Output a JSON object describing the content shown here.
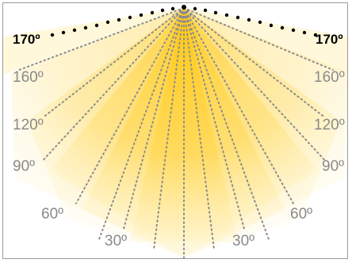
{
  "diagram": {
    "colors": {
      "beam_core": "#ffc400",
      "beam_edge": "#fff2b8",
      "ray_line": "#8c8c8c",
      "dot": "#000000",
      "frame_border": "#9a9a9a"
    },
    "labels": {
      "left_170": "170º",
      "right_170": "170º",
      "left_160": "160º",
      "right_160": "160º",
      "left_120": "120º",
      "right_120": "120º",
      "left_90": "90º",
      "right_90": "90º",
      "left_60": "60º",
      "right_60": "60º",
      "left_30": "30º",
      "right_30": "30º"
    }
  }
}
